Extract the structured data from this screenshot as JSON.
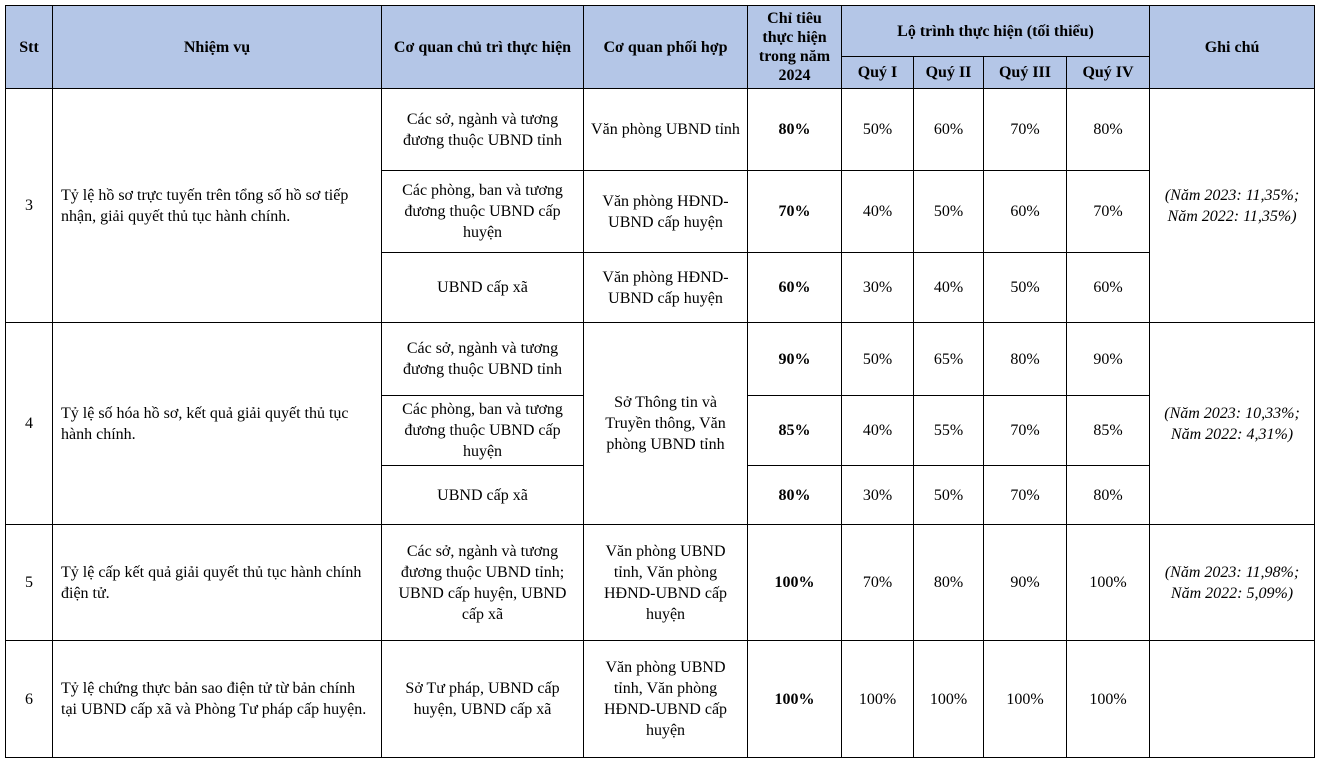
{
  "table": {
    "headers": {
      "stt": "Stt",
      "task": "Nhiệm vụ",
      "lead": "Cơ quan chủ trì thực hiện",
      "coord": "Cơ quan phối hợp",
      "target": "Chỉ tiêu thực hiện trong năm 2024",
      "roadmap": "Lộ trình thực hiện (tối thiểu)",
      "quarters": [
        "Quý I",
        "Quý II",
        "Quý III",
        "Quý IV"
      ],
      "note": "Ghi chú"
    },
    "groups": [
      {
        "stt": "3",
        "task": "Tỷ lệ hồ sơ trực tuyến trên tổng số hồ sơ tiếp nhận, giải quyết thủ tục hành chính.",
        "note": "(Năm 2023: 11,35%; Năm 2022: 11,35%)",
        "rows": [
          {
            "lead": "Các sở, ngành và tương đương thuộc UBND tỉnh",
            "coord": "Văn phòng UBND tỉnh",
            "target": "80%",
            "quarters": [
              "50%",
              "60%",
              "70%",
              "80%"
            ]
          },
          {
            "lead": "Các phòng, ban và tương đương thuộc UBND cấp huyện",
            "coord": "Văn phòng HĐND-UBND cấp huyện",
            "target": "70%",
            "quarters": [
              "40%",
              "50%",
              "60%",
              "70%"
            ]
          },
          {
            "lead": "UBND cấp xã",
            "coord": "Văn phòng HĐND-UBND cấp huyện",
            "target": "60%",
            "quarters": [
              "30%",
              "40%",
              "50%",
              "60%"
            ]
          }
        ]
      },
      {
        "stt": "4",
        "task": "Tỷ lệ số hóa hồ sơ, kết quả giải quyết thủ tục hành chính.",
        "coord": "Sở Thông tin và Truyền thông, Văn phòng UBND tỉnh",
        "note": "(Năm 2023: 10,33%; Năm 2022: 4,31%)",
        "rows": [
          {
            "lead": "Các sở, ngành và tương đương thuộc UBND tỉnh",
            "target": "90%",
            "quarters": [
              "50%",
              "65%",
              "80%",
              "90%"
            ]
          },
          {
            "lead": "Các phòng, ban và tương đương thuộc UBND cấp huyện",
            "target": "85%",
            "quarters": [
              "40%",
              "55%",
              "70%",
              "85%"
            ]
          },
          {
            "lead": "UBND cấp xã",
            "target": "80%",
            "quarters": [
              "30%",
              "50%",
              "70%",
              "80%"
            ]
          }
        ]
      },
      {
        "stt": "5",
        "task": "Tỷ lệ cấp kết quả giải quyết thủ tục hành chính điện tử.",
        "note": "(Năm 2023: 11,98%; Năm 2022: 5,09%)",
        "rows": [
          {
            "lead": "Các sở, ngành và tương đương thuộc UBND tỉnh; UBND cấp huyện, UBND cấp xã",
            "coord": "Văn phòng UBND tỉnh, Văn phòng HĐND-UBND cấp huyện",
            "target": "100%",
            "quarters": [
              "70%",
              "80%",
              "90%",
              "100%"
            ]
          }
        ]
      },
      {
        "stt": "6",
        "task": "Tỷ lệ chứng thực bản sao điện tử từ bản chính tại UBND cấp xã và Phòng Tư pháp cấp huyện.",
        "rows": [
          {
            "lead": "Sở Tư pháp, UBND cấp huyện, UBND cấp xã",
            "coord": "Văn phòng UBND tỉnh, Văn phòng HĐND-UBND cấp huyện",
            "target": "100%",
            "quarters": [
              "100%",
              "100%",
              "100%",
              "100%"
            ]
          }
        ]
      }
    ]
  }
}
